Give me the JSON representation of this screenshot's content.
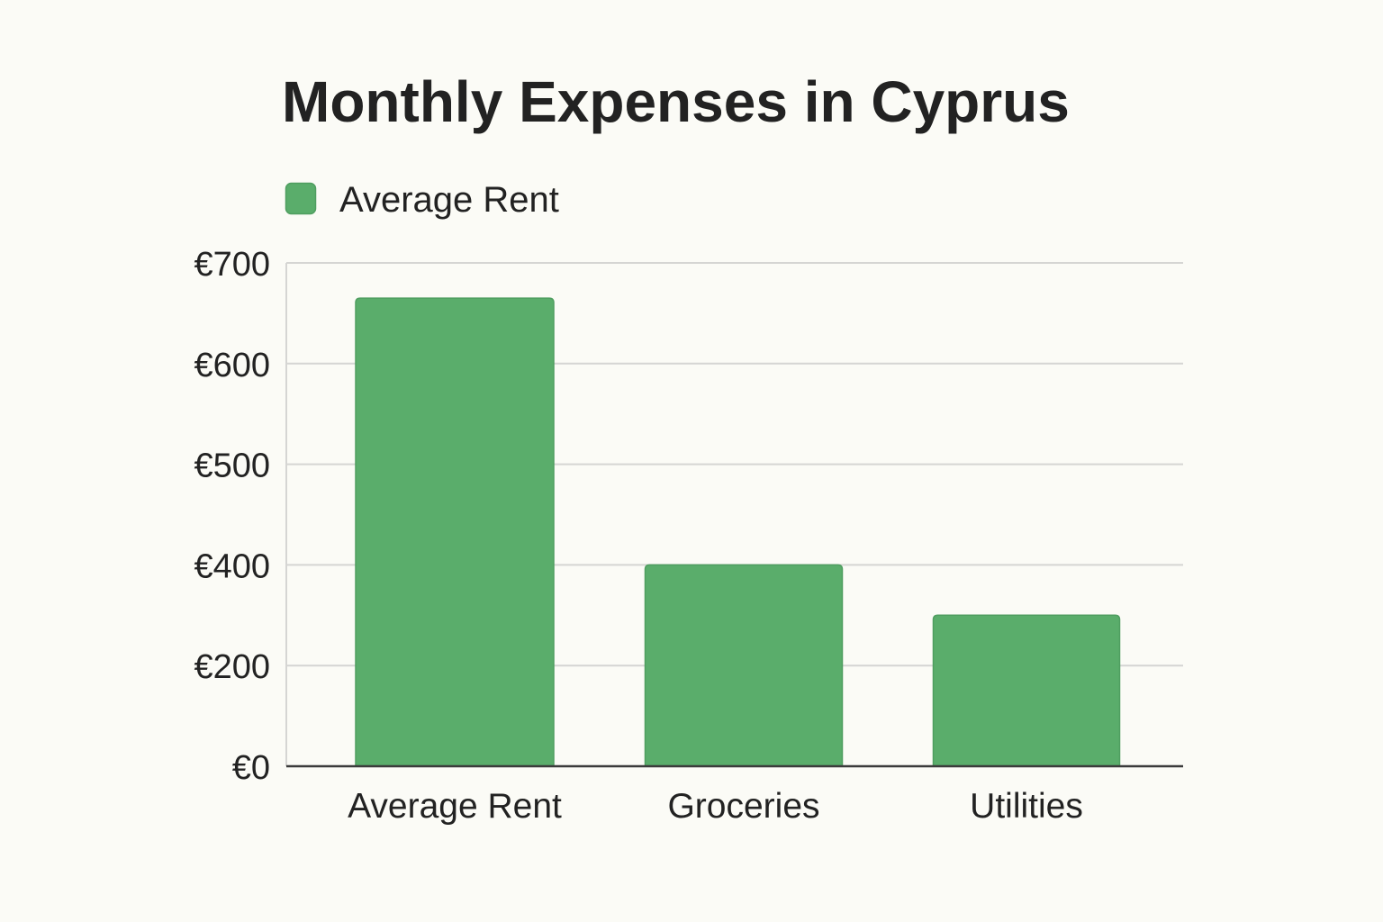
{
  "colors": {
    "background": "#fbfbf6",
    "text": "#222222",
    "bar_edge": "#4f9e60",
    "grid": "#d5d5d3",
    "axis": "#3b3b3b"
  },
  "chart_data": {
    "type": "bar",
    "title": "Monthly Expenses in Cyprus",
    "categories": [
      "Average Rent",
      "Groceries",
      "Utilities"
    ],
    "series": [
      {
        "name": "Average Rent",
        "values": [
          665,
          400,
          300
        ],
        "color": "#5aad6b"
      }
    ],
    "ylim": [
      0,
      700
    ],
    "yticks": [
      0,
      200,
      400,
      500,
      600,
      700
    ],
    "ytick_labels": [
      "€0",
      "€200",
      "€400",
      "€500",
      "€600",
      "€700"
    ],
    "grid": true
  }
}
